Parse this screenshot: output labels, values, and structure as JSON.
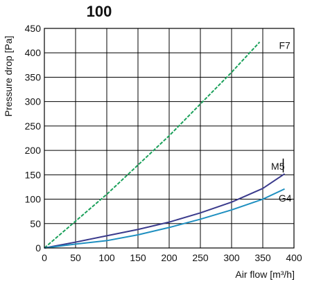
{
  "chart_data": {
    "type": "line",
    "title": "100",
    "xlabel": "Air flow [m³/h]",
    "ylabel": "Pressure drop [Pa]",
    "xlim": [
      0,
      400
    ],
    "ylim": [
      0,
      450
    ],
    "x_ticks": [
      0,
      50,
      100,
      150,
      200,
      250,
      300,
      350,
      400
    ],
    "y_ticks": [
      0,
      50,
      100,
      150,
      200,
      250,
      300,
      350,
      400,
      450
    ],
    "grid": true,
    "series": [
      {
        "name": "F7",
        "color": "#1aa05a",
        "style": "dashed",
        "x": [
          0,
          50,
          100,
          150,
          200,
          250,
          300,
          345
        ],
        "y": [
          0,
          55,
          110,
          170,
          230,
          295,
          360,
          422
        ]
      },
      {
        "name": "M5",
        "color": "#3a3a8c",
        "style": "solid",
        "x": [
          0,
          50,
          100,
          150,
          200,
          250,
          300,
          350,
          385
        ],
        "y": [
          0,
          12,
          25,
          38,
          53,
          72,
          94,
          122,
          152
        ]
      },
      {
        "name": "G4",
        "color": "#1e8fc0",
        "style": "solid",
        "x": [
          0,
          50,
          100,
          150,
          200,
          250,
          300,
          350,
          385
        ],
        "y": [
          0,
          8,
          15,
          27,
          42,
          59,
          78,
          100,
          121
        ]
      }
    ]
  }
}
